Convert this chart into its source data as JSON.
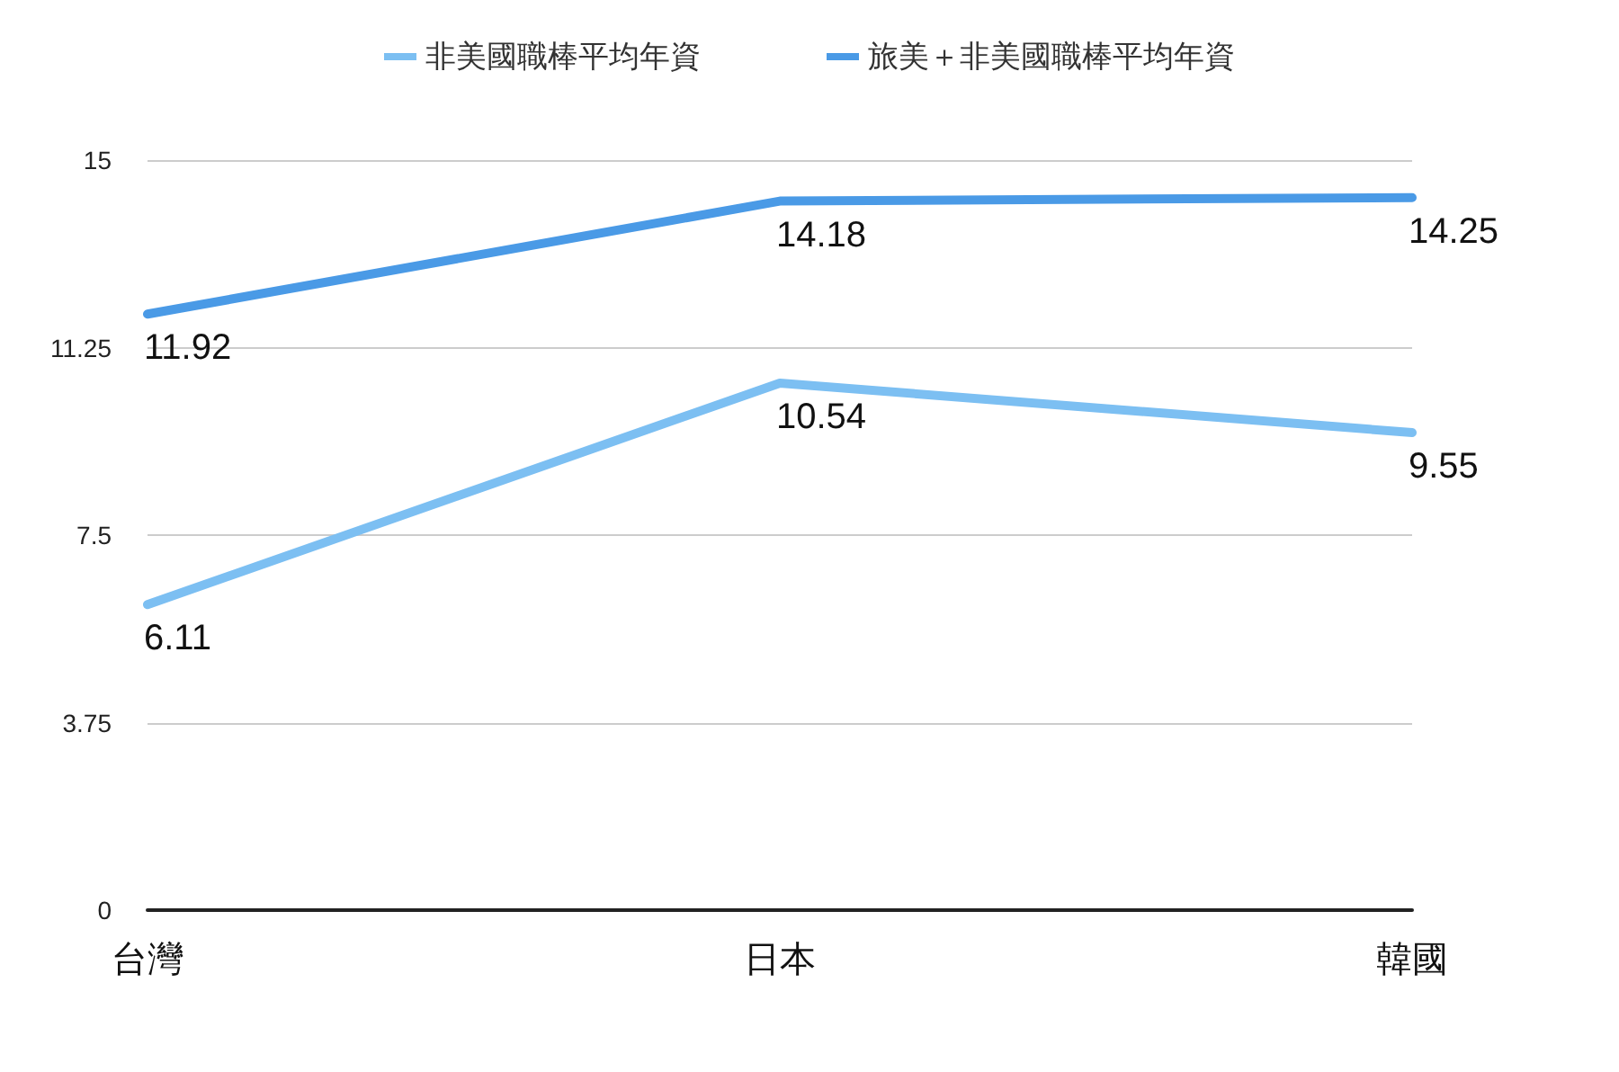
{
  "chart_data": {
    "type": "line",
    "categories": [
      "台灣",
      "日本",
      "韓國"
    ],
    "series": [
      {
        "name": "非美國職棒平均年資",
        "color": "#7cbff2",
        "values": [
          6.11,
          10.54,
          9.55
        ]
      },
      {
        "name": "旅美＋非美國職棒平均年資",
        "color": "#4a9ae6",
        "values": [
          11.92,
          14.18,
          14.25
        ]
      }
    ],
    "ylim": [
      0,
      15
    ],
    "yticks": [
      0,
      3.75,
      7.5,
      11.25,
      15
    ],
    "grid": "y",
    "legend": "top",
    "marker": "none",
    "line_style": "solid",
    "data_labels": true
  }
}
